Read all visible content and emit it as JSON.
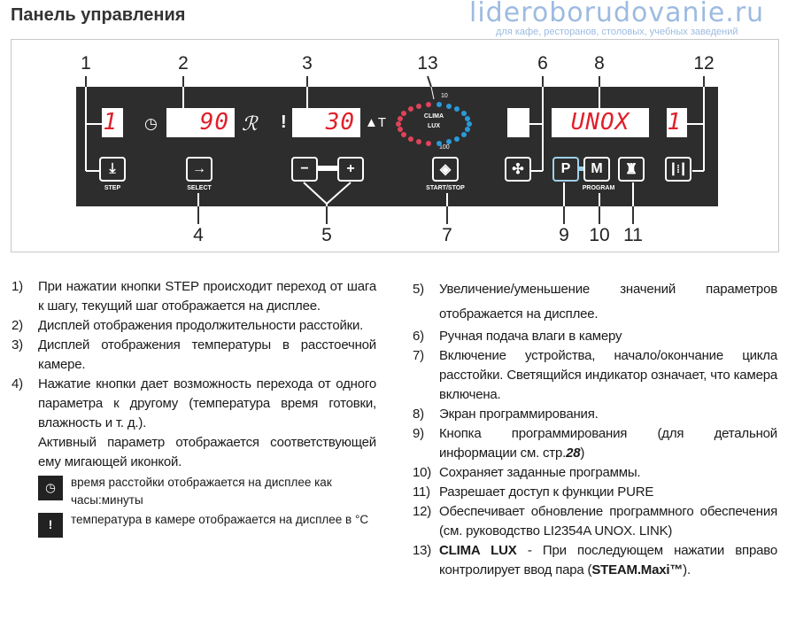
{
  "title": "Панель управления",
  "callouts": {
    "top": [
      "1",
      "2",
      "3",
      "13",
      "6",
      "8",
      "12"
    ],
    "bottom": [
      "4",
      "5",
      "7",
      "9",
      "10",
      "11"
    ]
  },
  "panel": {
    "displays": {
      "step": "1",
      "time": "90",
      "temp": "30",
      "humidity": "",
      "program": "UNOX",
      "update": "1"
    },
    "delta_t": "▲T",
    "clima": {
      "line1": "CLIMA",
      "line2": "LUX",
      "top": "10",
      "bottom": "100"
    },
    "buttons": {
      "step": "STEP",
      "select": "SELECT",
      "minus": "−",
      "plus": "+",
      "start_stop": "START/STOP",
      "p": "P",
      "m": "M",
      "program": "PROGRAM"
    },
    "colors": {
      "display_text": "#e0202a",
      "panel_bg": "#2e2d2d",
      "clima_red": "#e0445a",
      "clima_blue": "#2a9ad8"
    }
  },
  "left_items": [
    {
      "n": "1)",
      "text": "При нажатии кнопки STEP происходит переход от шага к шагу, текущий шаг отображается на дисплее."
    },
    {
      "n": "2)",
      "text": "Дисплей отображения продолжительности расстойки."
    },
    {
      "n": "3)",
      "text": "Дисплей отображения температуры в расстоечной камере."
    },
    {
      "n": "4)",
      "text": "Нажатие кнопки дает возможность перехода от одного параметра к другому (температура время готовки, влажность и т. д.).",
      "extra": "Активный параметр отображается соответствующей ему мигающей иконкой."
    }
  ],
  "icon_notes": [
    {
      "icon": "clock-icon",
      "text": "время расстойки отображается на дисплее как часы:минуты"
    },
    {
      "icon": "thermometer-icon",
      "text": "температура в камере отображается на дисплее в °C"
    }
  ],
  "right_items": [
    {
      "n": "5)",
      "text": "Увеличение/уменьшение значений параметров отображается на дисплее."
    },
    {
      "n": "6)",
      "text": "Ручная подача влаги в камеру"
    },
    {
      "n": "7)",
      "text": "Включение устройства, начало/окончание цикла расстойки. Светящийся индикатор означает, что камера включена."
    },
    {
      "n": "8)",
      "text": "Экран программирования."
    },
    {
      "n": "9)",
      "text": "Кнопка программирования (для детальной информации см. стр.",
      "page": "28",
      "after": ")"
    },
    {
      "n": "10)",
      "text": "Сохраняет заданные программы."
    },
    {
      "n": "11)",
      "text": "Разрешает доступ к функции PURE"
    },
    {
      "n": "12)",
      "text": "Обеспечивает обновление программного обеспечения (см. руководство LI2354A UNOX. LINK)"
    },
    {
      "n": "13)",
      "bold": "CLIMA LUX",
      "text": " - При последующем нажатии вправо контролирует ввод пара (",
      "bold2": "STEAM.Maxi™",
      "after": ")."
    }
  ],
  "watermark": {
    "site": "lideroborudovanie.ru",
    "tagline": "для кафе, ресторанов, столовых, учебных заведений"
  }
}
